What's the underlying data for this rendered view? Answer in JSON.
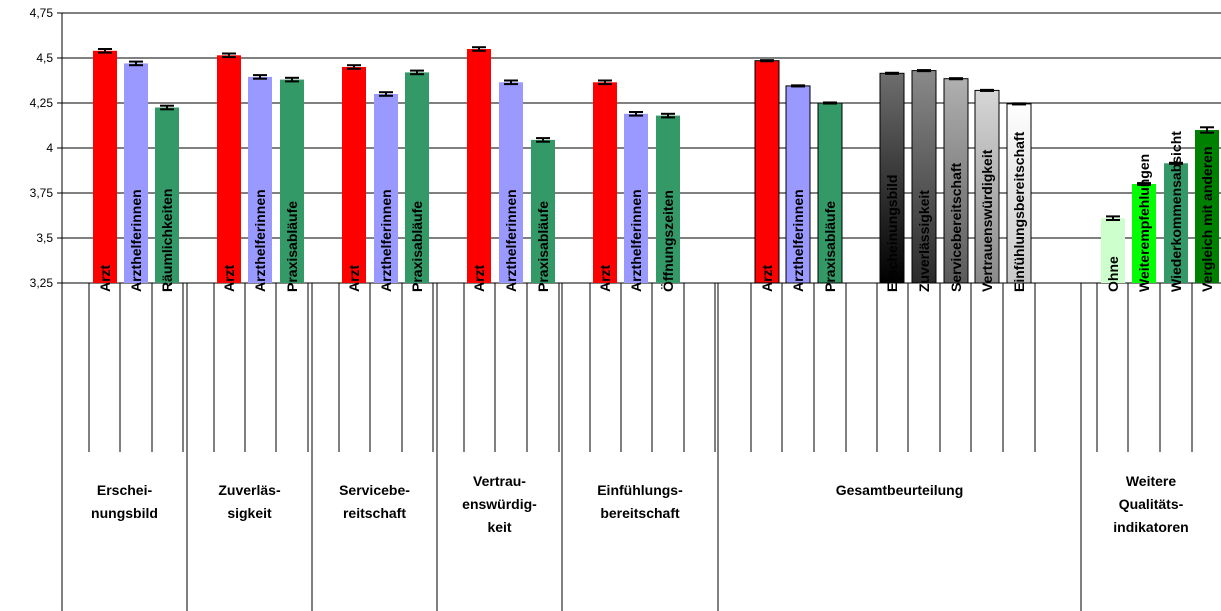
{
  "chart_data": {
    "type": "bar",
    "ylim": [
      3.25,
      4.75
    ],
    "y_ticks": [
      "3,25",
      "3,5",
      "3,75",
      "4",
      "4,25",
      "4,5",
      "4,75"
    ],
    "grid": true,
    "error_bars": true,
    "groups": [
      {
        "label_lines": [
          "Erschei-",
          "nungsbild"
        ],
        "bars": [
          {
            "category": "Arzt",
            "value": 4.54,
            "error": 0.01,
            "color": "#ff0000"
          },
          {
            "category": "Arzthelferinnen",
            "value": 4.47,
            "error": 0.01,
            "color": "#9999ff"
          },
          {
            "category": "Räumlichkeiten",
            "value": 4.225,
            "error": 0.01,
            "color": "#339966"
          }
        ]
      },
      {
        "label_lines": [
          "Zuverläs-",
          "sigkeit"
        ],
        "bars": [
          {
            "category": "Arzt",
            "value": 4.515,
            "error": 0.01,
            "color": "#ff0000"
          },
          {
            "category": "Arzthelferinnen",
            "value": 4.395,
            "error": 0.01,
            "color": "#9999ff"
          },
          {
            "category": "Praxisabläufe",
            "value": 4.38,
            "error": 0.01,
            "color": "#339966"
          }
        ]
      },
      {
        "label_lines": [
          "Servicebe-",
          "reitschaft"
        ],
        "bars": [
          {
            "category": "Arzt",
            "value": 4.45,
            "error": 0.01,
            "color": "#ff0000"
          },
          {
            "category": "Arzthelferinnen",
            "value": 4.3,
            "error": 0.01,
            "color": "#9999ff"
          },
          {
            "category": "Praxisabläufe",
            "value": 4.42,
            "error": 0.01,
            "color": "#339966"
          }
        ]
      },
      {
        "label_lines": [
          "Vertrau-",
          "enswürdig-",
          "keit"
        ],
        "bars": [
          {
            "category": "Arzt",
            "value": 4.55,
            "error": 0.01,
            "color": "#ff0000"
          },
          {
            "category": "Arzthelferinnen",
            "value": 4.365,
            "error": 0.01,
            "color": "#9999ff"
          },
          {
            "category": "Praxisabläufe",
            "value": 4.045,
            "error": 0.01,
            "color": "#339966"
          }
        ]
      },
      {
        "label_lines": [
          "Einfühlungs-",
          "bereitschaft"
        ],
        "bars": [
          {
            "category": "Arzt",
            "value": 4.365,
            "error": 0.01,
            "color": "#ff0000"
          },
          {
            "category": "Arzthelferinnen",
            "value": 4.19,
            "error": 0.01,
            "color": "#9999ff"
          },
          {
            "category": "Öffnungszeiten",
            "value": 4.18,
            "error": 0.01,
            "color": "#339966"
          }
        ]
      },
      {
        "label_lines": [
          "Gesamtbeurteilung"
        ],
        "bars": [
          {
            "category": "Arzt",
            "value": 4.485,
            "error": 0.003,
            "color": "#ff0000"
          },
          {
            "category": "Arzthelferinnen",
            "value": 4.345,
            "error": 0.003,
            "color": "#9999ff"
          },
          {
            "category": "Praxisabläufe",
            "value": 4.25,
            "error": 0.003,
            "color": "#339966"
          },
          {
            "category": null,
            "value": null
          },
          {
            "category": "Erscheinungsbild",
            "value": 4.415,
            "error": 0.003,
            "color": "#333333",
            "gradient": [
              "#000000",
              "#6e6e6e"
            ]
          },
          {
            "category": "Zuverlässigkeit",
            "value": 4.43,
            "error": 0.003,
            "color": "#555555",
            "gradient": [
              "#2a2a2a",
              "#8a8a8a"
            ]
          },
          {
            "category": "Servicebereitschaft",
            "value": 4.385,
            "error": 0.003,
            "color": "#888888",
            "gradient": [
              "#5a5a5a",
              "#b0b0b0"
            ]
          },
          {
            "category": "Vertrauenswürdigkeit",
            "value": 4.32,
            "error": 0.003,
            "color": "#aaaaaa",
            "gradient": [
              "#8a8a8a",
              "#d6d6d6"
            ]
          },
          {
            "category": "Einfühlungsbereitschaft",
            "value": 4.245,
            "error": 0.003,
            "color": "#e0e0e0",
            "gradient": [
              "#c8c8c8",
              "#ffffff"
            ]
          }
        ]
      },
      {
        "label_lines": [
          "Weitere",
          "Qualitäts-",
          "indikatoren"
        ],
        "bars": [
          {
            "category": "Ohne",
            "value": 3.61,
            "error": 0.01,
            "color": "#ccffcc"
          },
          {
            "category": "Weiterempfehlungen",
            "value": 3.8,
            "error": 0.005,
            "color": "#00ff00"
          },
          {
            "category": "Wiederkommensabsicht",
            "value": 3.915,
            "error": 0.003,
            "color": "#339966"
          },
          {
            "category": "Vergleich mit anderen",
            "value": 4.1,
            "error": 0.015,
            "color": "#008000"
          }
        ]
      }
    ]
  }
}
